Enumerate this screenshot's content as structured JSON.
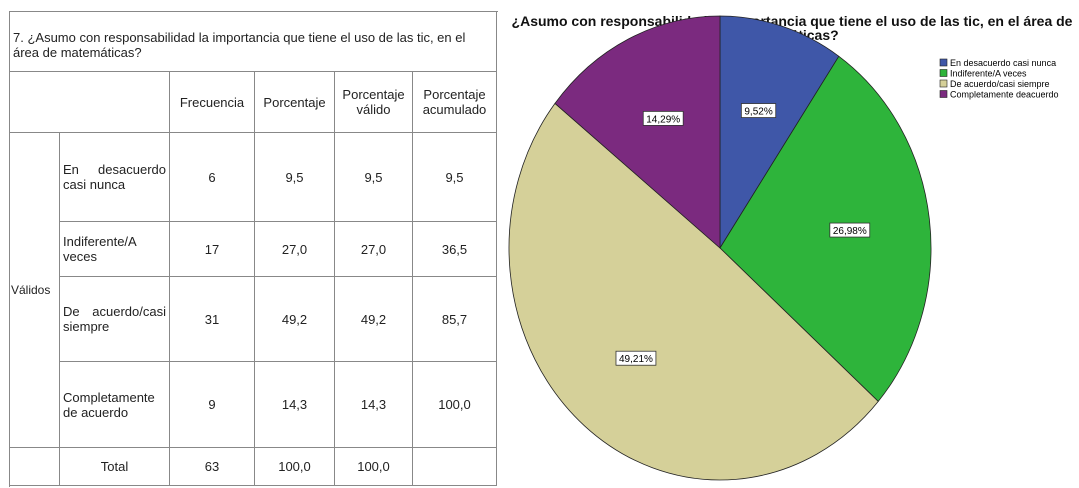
{
  "table": {
    "title": "7.  ¿Asumo con responsabilidad la importancia que tiene el uso de las tic, en el área de matemáticas?",
    "headers": [
      "Frecuencia",
      "Porcentaje",
      "Porcentaje válido",
      "Porcentaje acumulado"
    ],
    "group": "Válidos",
    "rows": [
      [
        "En desacuerdo casi nunca",
        "6",
        "9,5",
        "9,5",
        "9,5"
      ],
      [
        "Indiferente/A veces",
        "17",
        "27,0",
        "27,0",
        "36,5"
      ],
      [
        "De acuerdo/casi siempre",
        "31",
        "49,2",
        "49,2",
        "85,7"
      ],
      [
        "Completamente de acuerdo",
        "9",
        "14,3",
        "14,3",
        "100,0"
      ]
    ],
    "total": [
      "Total",
      "63",
      "100,0",
      "100,0"
    ]
  },
  "chart_data": {
    "type": "pie",
    "title": "¿Asumo con responsabilidad la importancia que tiene el uso de las tic, en el área de matemáticas?",
    "categories": [
      "En desacuerdo casi nunca",
      "Indiferente/A veces",
      "De acuerdo/casi siempre",
      "Completamente deacuerdo"
    ],
    "values": [
      9.52,
      26.98,
      49.21,
      14.29
    ],
    "value_labels": [
      "9,52%",
      "26,98%",
      "49,21%",
      "14,29%"
    ],
    "colors": [
      "#3f57a8",
      "#2eb43b",
      "#d5d099",
      "#7b2a7f"
    ]
  }
}
